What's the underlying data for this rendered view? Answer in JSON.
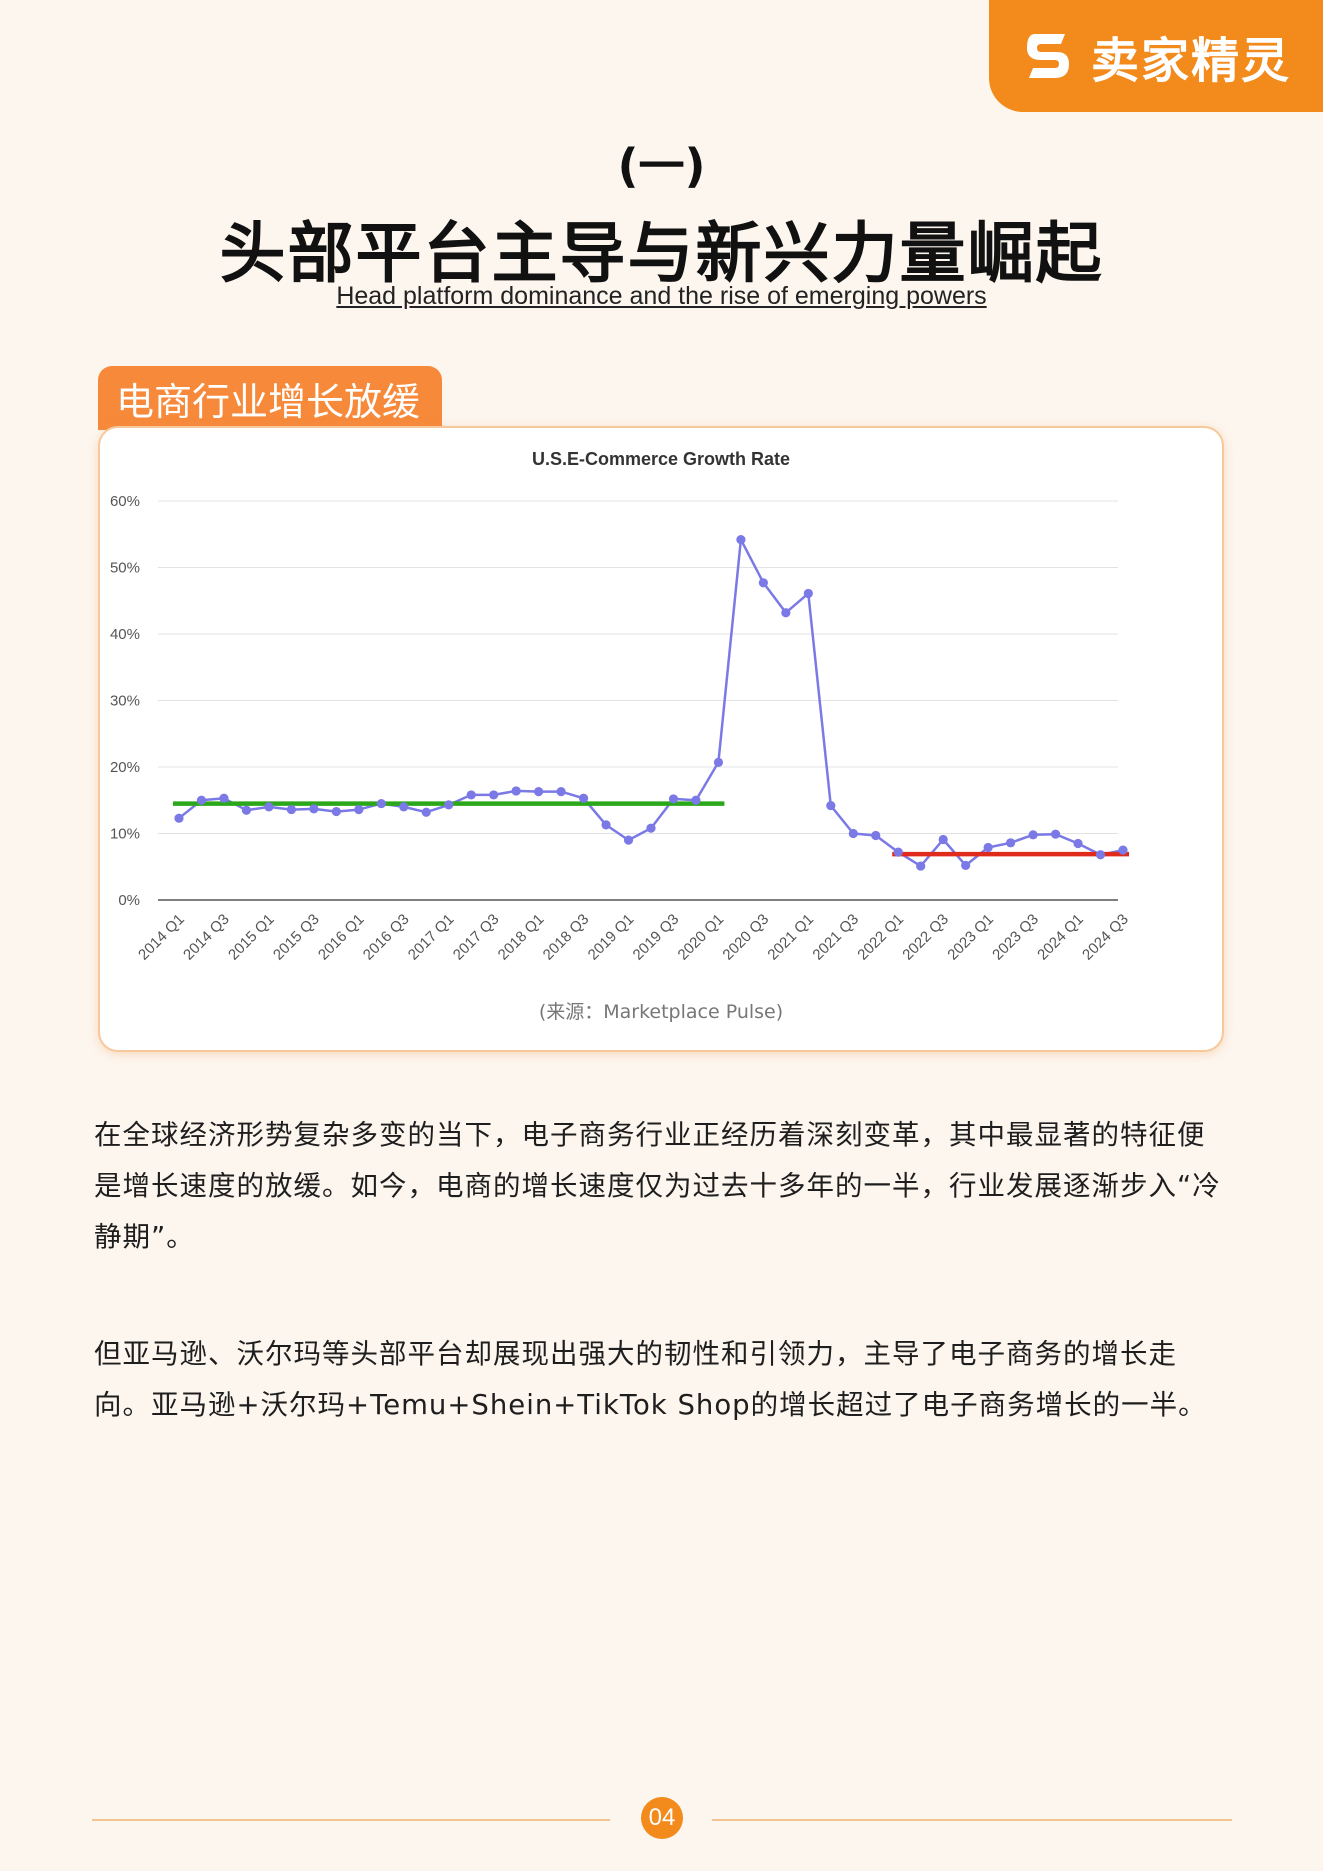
{
  "brand": {
    "name": "卖家精灵",
    "logo_icon": "s-shape-logo-icon",
    "color": "#f28a1c"
  },
  "header": {
    "section_number": "(一)",
    "title": "头部平台主导与新兴力量崛起",
    "subtitle": "Head platform dominance and the rise of emerging powers"
  },
  "tag_label": "电商行业增长放缓",
  "chart_data": {
    "type": "line",
    "title": "U.S.E-Commerce Growth Rate",
    "xlabel": "",
    "ylabel": "",
    "ylim": [
      0,
      60
    ],
    "yticks": [
      "0%",
      "10%",
      "20%",
      "30%",
      "40%",
      "50%",
      "60%"
    ],
    "x": [
      "2014 Q1",
      "2014 Q2",
      "2014 Q3",
      "2014 Q4",
      "2015 Q1",
      "2015 Q2",
      "2015 Q3",
      "2015 Q4",
      "2016 Q1",
      "2016 Q2",
      "2016 Q3",
      "2016 Q4",
      "2017 Q1",
      "2017 Q2",
      "2017 Q3",
      "2017 Q4",
      "2018 Q1",
      "2018 Q2",
      "2018 Q3",
      "2018 Q4",
      "2019 Q1",
      "2019 Q2",
      "2019 Q3",
      "2019 Q4",
      "2020 Q1",
      "2020 Q2",
      "2020 Q3",
      "2020 Q4",
      "2021 Q1",
      "2021 Q2",
      "2021 Q3",
      "2021 Q4",
      "2022 Q1",
      "2022 Q2",
      "2022 Q3",
      "2022 Q4",
      "2023 Q1",
      "2023 Q2",
      "2023 Q3",
      "2023 Q4",
      "2024 Q1",
      "2024 Q2",
      "2024 Q3"
    ],
    "xtick_labels": [
      "2014 Q1",
      "2014 Q3",
      "2015 Q1",
      "2015 Q3",
      "2016 Q1",
      "2016 Q3",
      "2017 Q1",
      "2017 Q3",
      "2018 Q1",
      "2018 Q3",
      "2019 Q1",
      "2019 Q3",
      "2020 Q1",
      "2020 Q3",
      "2021 Q1",
      "2021 Q3",
      "2022 Q1",
      "2022 Q3",
      "2023 Q1",
      "2023 Q3",
      "2024 Q1",
      "2024 Q3"
    ],
    "series": [
      {
        "values": [
          12.3,
          15.0,
          15.3,
          13.5,
          14.0,
          13.6,
          13.7,
          13.3,
          13.6,
          14.5,
          14.0,
          13.2,
          14.3,
          15.8,
          15.8,
          16.4,
          16.3,
          16.3,
          15.3,
          11.3,
          9.0,
          10.8,
          15.2,
          15.0,
          20.7,
          54.2,
          47.7,
          43.2,
          46.1,
          14.2,
          10.0,
          9.7,
          7.2,
          5.1,
          9.1,
          5.2,
          7.9,
          8.6,
          9.8,
          9.9,
          8.5,
          6.8,
          7.5
        ],
        "color": "#7b79e6"
      }
    ],
    "reference_lines": [
      {
        "value": 14.5,
        "from": "2014 Q1",
        "to": "2020 Q1",
        "color": "#2aa81a"
      },
      {
        "value": 6.9,
        "from": "2022 Q1",
        "to": "2024 Q3",
        "color": "#e02a1c"
      }
    ],
    "grid": true,
    "legend": "none",
    "source_note": "(来源：Marketplace Pulse)"
  },
  "paragraphs": [
    "在全球经济形势复杂多变的当下，电子商务行业正经历着深刻变革，其中最显著的特征便是增长速度的放缓。如今，电商的增长速度仅为过去十多年的一半，行业发展逐渐步入“冷静期”。",
    "但亚马逊、沃尔玛等头部平台却展现出强大的韧性和引领力，主导了电子商务的增长走向。亚马逊+沃尔玛+Temu+Shein+TikTok Shop的增长超过了电子商务增长的一半。"
  ],
  "footer": {
    "page_number": "04"
  }
}
